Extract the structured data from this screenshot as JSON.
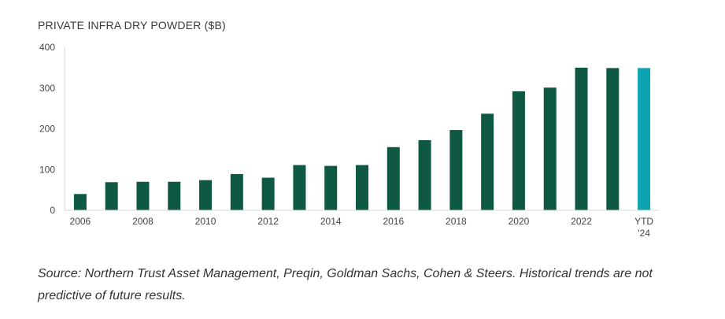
{
  "chart_data": {
    "type": "bar",
    "title": "PRIVATE INFRA DRY POWDER ($B)",
    "categories": [
      "2006",
      "2007",
      "2008",
      "2009",
      "2010",
      "2011",
      "2012",
      "2013",
      "2014",
      "2015",
      "2016",
      "2017",
      "2018",
      "2019",
      "2020",
      "2021",
      "2022",
      "2023",
      "YTD '24"
    ],
    "tick_labels": [
      {
        "category": "2006",
        "lines": [
          "2006"
        ]
      },
      {
        "category": "2008",
        "lines": [
          "2008"
        ]
      },
      {
        "category": "2010",
        "lines": [
          "2010"
        ]
      },
      {
        "category": "2012",
        "lines": [
          "2012"
        ]
      },
      {
        "category": "2014",
        "lines": [
          "2014"
        ]
      },
      {
        "category": "2016",
        "lines": [
          "2016"
        ]
      },
      {
        "category": "2018",
        "lines": [
          "2018"
        ]
      },
      {
        "category": "2020",
        "lines": [
          "2020"
        ]
      },
      {
        "category": "2022",
        "lines": [
          "2022"
        ]
      },
      {
        "category": "YTD '24",
        "lines": [
          "YTD",
          "'24"
        ]
      }
    ],
    "values": [
      40,
      69,
      70,
      70,
      74,
      89,
      80,
      111,
      109,
      111,
      155,
      172,
      197,
      237,
      292,
      301,
      350,
      349,
      349
    ],
    "ylim": [
      0,
      400
    ],
    "yticks": [
      0,
      100,
      200,
      300,
      400
    ],
    "xlabel": "",
    "ylabel": "",
    "grid": false,
    "colors": {
      "bar": "#0f5944",
      "highlight_bar": "#0fa3b1",
      "axis": "#d9d9d9",
      "tick_text": "#444444"
    },
    "highlight_category": "YTD '24"
  },
  "source_note": "Source: Northern Trust Asset Management, Preqin, Goldman Sachs, Cohen & Steers. Historical trends are not predictive of future results."
}
